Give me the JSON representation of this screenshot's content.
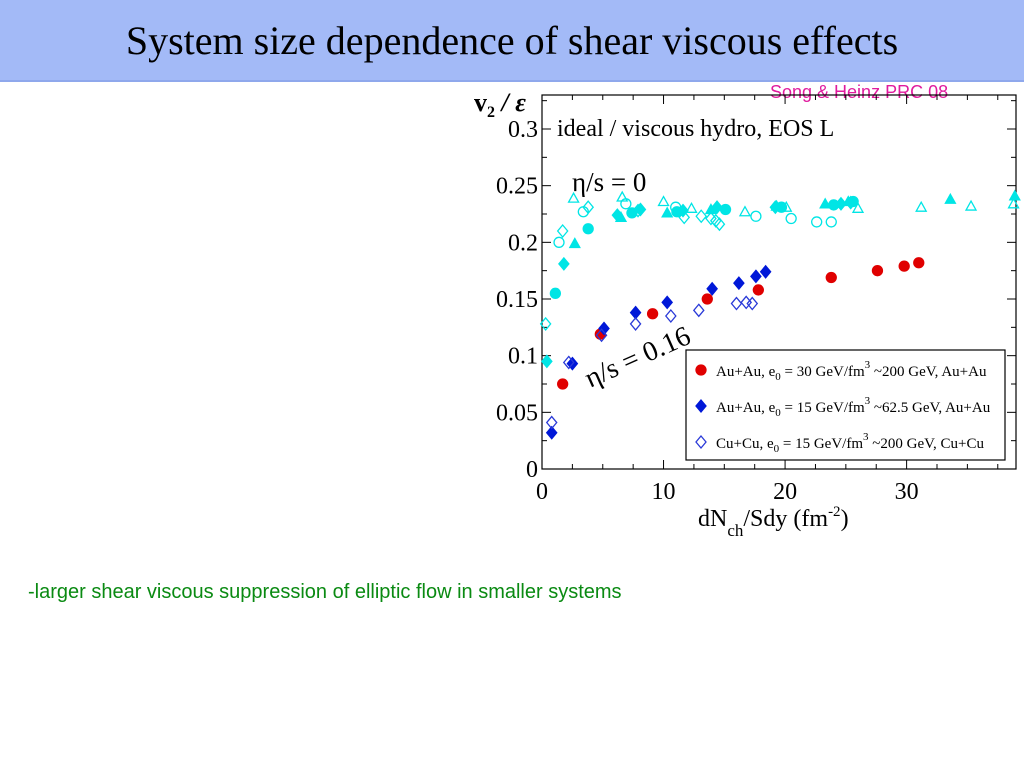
{
  "slide": {
    "title": "System size dependence of shear viscous effects",
    "citation": "Song & Heinz PRC 08",
    "caption": "-larger shear viscous suppression of elliptic flow in smaller systems"
  },
  "colors": {
    "title_bg": "#a3baf7",
    "citation": "#e01b9e",
    "caption": "#0a8a12",
    "ideal": "#00e5e5",
    "auau30": "#e00000",
    "auau15": "#0018d8",
    "cucu15": "#2a3ad8"
  },
  "chart_data": {
    "type": "scatter",
    "ylabel": {
      "main": "v",
      "sub": "2",
      "rest": " / ε"
    },
    "xlabel": {
      "main": "dN",
      "sub": "ch",
      "rest": "/Sdy (fm",
      "sup": "-2",
      "end": ")"
    },
    "panel_label": "ideal / viscous hydro, EOS L",
    "annotations": {
      "ideal": "η/s = 0",
      "viscous": "η/s = 0.16"
    },
    "xlim": [
      0,
      39
    ],
    "ylim": [
      0,
      0.33
    ],
    "x_ticks": [
      0,
      10,
      20,
      30
    ],
    "x_tick_labels": [
      "0",
      "10",
      "20",
      "30"
    ],
    "y_ticks": [
      0,
      0.05,
      0.1,
      0.15,
      0.2,
      0.25,
      0.3
    ],
    "y_tick_labels": [
      "0",
      "0.05",
      "0.1",
      "0.15",
      "0.2",
      "0.25",
      "0.3"
    ],
    "legend_position": "bottom-right",
    "legend": [
      {
        "text": "Au+Au, e",
        "sub": "0",
        "text2": " = 30 GeV/fm",
        "sup": "3",
        "text3": " ~200 GeV, Au+Au",
        "marker": "circle-filled",
        "color": "#e00000"
      },
      {
        "text": "Au+Au, e",
        "sub": "0",
        "text2": " = 15 GeV/fm",
        "sup": "3",
        "text3": " ~62.5 GeV, Au+Au",
        "marker": "diamond-filled",
        "color": "#0018d8"
      },
      {
        "text": "Cu+Cu, e",
        "sub": "0",
        "text2": " = 15 GeV/fm",
        "sup": "3",
        "text3": " ~200 GeV, Cu+Cu",
        "marker": "diamond-open",
        "color": "#2a3ad8"
      }
    ],
    "series": [
      {
        "name": "Au+Au, e0 = 30 GeV/fm3 ~200 GeV, Au+Au",
        "group": "viscous",
        "marker": "circle-filled",
        "color": "#e00000",
        "points": [
          [
            1.7,
            0.075
          ],
          [
            4.8,
            0.119
          ],
          [
            9.1,
            0.137
          ],
          [
            13.6,
            0.15
          ],
          [
            17.8,
            0.158
          ],
          [
            23.8,
            0.169
          ],
          [
            27.6,
            0.175
          ],
          [
            29.8,
            0.179
          ],
          [
            31.0,
            0.182
          ]
        ]
      },
      {
        "name": "Au+Au, e0 = 15 GeV/fm3 ~62.5 GeV, Au+Au",
        "group": "viscous",
        "marker": "diamond-filled",
        "color": "#0018d8",
        "points": [
          [
            0.8,
            0.032
          ],
          [
            2.5,
            0.093
          ],
          [
            5.1,
            0.124
          ],
          [
            7.7,
            0.138
          ],
          [
            10.3,
            0.147
          ],
          [
            14.0,
            0.159
          ],
          [
            16.2,
            0.164
          ],
          [
            17.6,
            0.17
          ],
          [
            18.4,
            0.174
          ]
        ]
      },
      {
        "name": "Cu+Cu, e0 = 15 GeV/fm3 ~200 GeV, Cu+Cu",
        "group": "viscous",
        "marker": "diamond-open",
        "color": "#2a3ad8",
        "points": [
          [
            0.8,
            0.041
          ],
          [
            2.2,
            0.094
          ],
          [
            4.9,
            0.118
          ],
          [
            7.7,
            0.128
          ],
          [
            10.6,
            0.135
          ],
          [
            12.9,
            0.14
          ],
          [
            16.0,
            0.146
          ],
          [
            16.8,
            0.147
          ],
          [
            17.3,
            0.146
          ]
        ]
      },
      {
        "name": "ideal Au+Au (filled circles)",
        "group": "ideal",
        "marker": "circle-filled",
        "color": "#00e5e5",
        "points": [
          [
            1.1,
            0.155
          ],
          [
            3.8,
            0.212
          ],
          [
            7.4,
            0.226
          ],
          [
            11.1,
            0.227
          ],
          [
            15.1,
            0.229
          ],
          [
            19.7,
            0.231
          ],
          [
            24.0,
            0.233
          ],
          [
            25.6,
            0.236
          ]
        ]
      },
      {
        "name": "ideal Au+Au (filled triangles)",
        "group": "ideal",
        "marker": "triangle-filled",
        "color": "#00e5e5",
        "points": [
          [
            2.7,
            0.199
          ],
          [
            6.5,
            0.222
          ],
          [
            10.3,
            0.226
          ],
          [
            13.9,
            0.229
          ],
          [
            19.3,
            0.232
          ],
          [
            23.3,
            0.234
          ],
          [
            25.2,
            0.236
          ],
          [
            33.6,
            0.238
          ],
          [
            38.9,
            0.241
          ]
        ]
      },
      {
        "name": "ideal Au+Au (filled diamonds)",
        "group": "ideal",
        "marker": "diamond-filled",
        "color": "#00e5e5",
        "points": [
          [
            0.4,
            0.095
          ],
          [
            1.8,
            0.181
          ],
          [
            6.2,
            0.224
          ],
          [
            8.1,
            0.229
          ],
          [
            11.6,
            0.228
          ],
          [
            14.4,
            0.231
          ],
          [
            19.2,
            0.231
          ],
          [
            24.6,
            0.234
          ],
          [
            25.4,
            0.235
          ]
        ]
      },
      {
        "name": "ideal Cu+Cu (open circles)",
        "group": "ideal",
        "marker": "circle-open",
        "color": "#00e5e5",
        "points": [
          [
            1.4,
            0.2
          ],
          [
            3.4,
            0.227
          ],
          [
            6.9,
            0.234
          ],
          [
            11.0,
            0.231
          ],
          [
            17.6,
            0.223
          ],
          [
            20.5,
            0.221
          ],
          [
            22.6,
            0.218
          ],
          [
            23.8,
            0.218
          ]
        ]
      },
      {
        "name": "ideal Cu+Cu (open triangles)",
        "group": "ideal",
        "marker": "triangle-open",
        "color": "#00e5e5",
        "points": [
          [
            2.6,
            0.239
          ],
          [
            6.6,
            0.24
          ],
          [
            10.0,
            0.236
          ],
          [
            12.3,
            0.23
          ],
          [
            16.7,
            0.227
          ],
          [
            20.1,
            0.231
          ],
          [
            26.0,
            0.23
          ],
          [
            31.2,
            0.231
          ],
          [
            35.3,
            0.232
          ],
          [
            38.8,
            0.234
          ]
        ]
      },
      {
        "name": "ideal Cu+Cu (open diamonds)",
        "group": "ideal",
        "marker": "diamond-open",
        "color": "#00e5e5",
        "points": [
          [
            0.3,
            0.128
          ],
          [
            1.7,
            0.21
          ],
          [
            3.8,
            0.231
          ],
          [
            7.9,
            0.228
          ],
          [
            11.7,
            0.222
          ],
          [
            13.1,
            0.223
          ],
          [
            13.9,
            0.221
          ],
          [
            14.3,
            0.219
          ],
          [
            14.6,
            0.216
          ]
        ]
      }
    ]
  }
}
